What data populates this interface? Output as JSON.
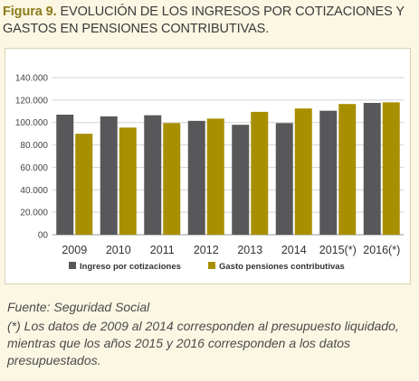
{
  "figure": {
    "label": "Figura 9.",
    "title": "EVOLUCIÓN DE LOS INGRESOS POR COTIZACIONES Y GASTOS EN PENSIONES CONTRIBUTIVAS."
  },
  "notes": {
    "source": "Fuente: Seguridad Social",
    "footnote": "(*) Los datos de 2009 al 2014 corresponden al presupuesto liquidado, mientras que los años 2015 y 2016 corresponden a los datos presupuestados."
  },
  "chart_data": {
    "type": "bar",
    "title": "",
    "xlabel": "",
    "ylabel": "",
    "categories": [
      "2009",
      "2010",
      "2011",
      "2012",
      "2013",
      "2014",
      "2015(*)",
      "2016(*)"
    ],
    "series": [
      {
        "name": "Ingreso por cotizaciones",
        "color": "#58585a",
        "values": [
          107000,
          105500,
          106500,
          101500,
          98000,
          99500,
          110500,
          117500
        ]
      },
      {
        "name": "Gasto pensiones contributivas",
        "color": "#a88f00",
        "values": [
          90000,
          95500,
          99500,
          103500,
          109500,
          112500,
          116500,
          118000
        ]
      }
    ],
    "ylim": [
      0,
      140000
    ],
    "yticks": [
      0,
      20000,
      40000,
      60000,
      80000,
      100000,
      120000,
      140000
    ],
    "ytick_labels": [
      "00",
      "20.000",
      "40.000",
      "60.000",
      "80.000",
      "100.000",
      "120.000",
      "140.000"
    ],
    "grid": true,
    "legend_position": "bottom-center"
  }
}
